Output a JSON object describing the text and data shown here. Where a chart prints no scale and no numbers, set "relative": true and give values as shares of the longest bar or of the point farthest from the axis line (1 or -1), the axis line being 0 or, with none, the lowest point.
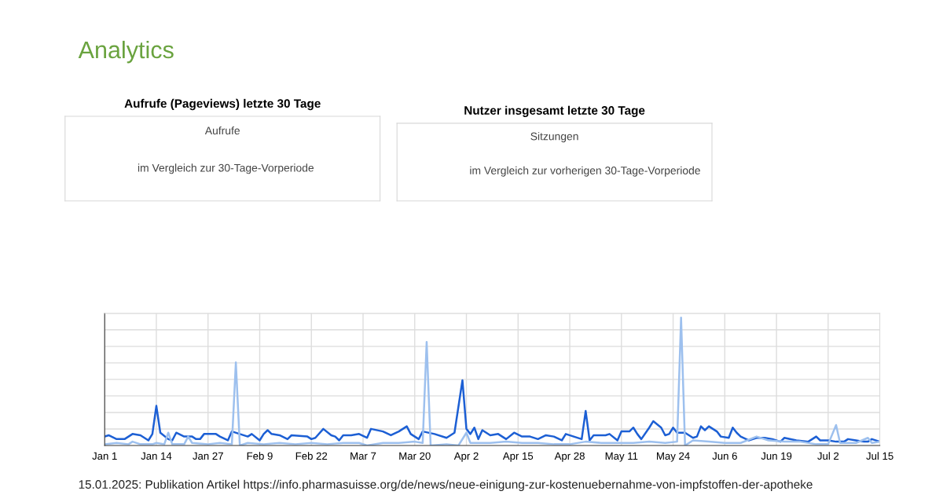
{
  "chart_data": [
    {
      "type": "other",
      "title": "Analytics"
    },
    {
      "type": "other",
      "title": "Aufrufe (Pageviews) letzte 30 Tage",
      "annotations": [
        "Aufrufe",
        "im Vergleich zur 30-Tage-Vorperiode"
      ]
    },
    {
      "type": "other",
      "title": "Nutzer insgesamt letzte 30 Tage",
      "annotations": [
        "Sitzungen",
        "im Vergleich zur vorherigen 30-Tage-Vorperiode"
      ]
    },
    {
      "type": "line",
      "relative": true,
      "grid": true,
      "legend": false,
      "marker": "none",
      "line_style": "solid",
      "xlim": [
        "2025-01-01",
        "2025-07-15"
      ],
      "xticks": [
        {
          "value": "2025-01-01",
          "label": "Jan 1"
        },
        {
          "value": "2025-01-14",
          "label": "Jan 14"
        },
        {
          "value": "2025-01-27",
          "label": "Jan 27"
        },
        {
          "value": "2025-02-09",
          "label": "Feb 9"
        },
        {
          "value": "2025-02-22",
          "label": "Feb 22"
        },
        {
          "value": "2025-03-07",
          "label": "Mar 7"
        },
        {
          "value": "2025-03-20",
          "label": "Mar 20"
        },
        {
          "value": "2025-04-02",
          "label": "Apr 2"
        },
        {
          "value": "2025-04-15",
          "label": "Apr 15"
        },
        {
          "value": "2025-04-28",
          "label": "Apr 28"
        },
        {
          "value": "2025-05-11",
          "label": "May 11"
        },
        {
          "value": "2025-05-24",
          "label": "May 24"
        },
        {
          "value": "2025-06-06",
          "label": "Jun 6"
        },
        {
          "value": "2025-06-19",
          "label": "Jun 19"
        },
        {
          "value": "2025-07-02",
          "label": "Jul 2"
        },
        {
          "value": "2025-07-15",
          "label": "Jul 15"
        }
      ],
      "series": [
        {
          "color": "#1c5fd4",
          "x": [
            "2025-01-01",
            "2025-01-02",
            "2025-01-04",
            "2025-01-06",
            "2025-01-08",
            "2025-01-10",
            "2025-01-12",
            "2025-01-13",
            "2025-01-14",
            "2025-01-15",
            "2025-01-17",
            "2025-01-18",
            "2025-01-19",
            "2025-01-21",
            "2025-01-23",
            "2025-01-24",
            "2025-01-25",
            "2025-01-26",
            "2025-01-29",
            "2025-01-30",
            "2025-02-01",
            "2025-02-02",
            "2025-02-04",
            "2025-02-06",
            "2025-02-07",
            "2025-02-09",
            "2025-02-10",
            "2025-02-11",
            "2025-02-12",
            "2025-02-14",
            "2025-02-16",
            "2025-02-17",
            "2025-02-21",
            "2025-02-22",
            "2025-02-23",
            "2025-02-25",
            "2025-02-27",
            "2025-02-28",
            "2025-03-01",
            "2025-03-02",
            "2025-03-04",
            "2025-03-06",
            "2025-03-08",
            "2025-03-09",
            "2025-03-12",
            "2025-03-14",
            "2025-03-16",
            "2025-03-18",
            "2025-03-19",
            "2025-03-21",
            "2025-03-22",
            "2025-03-25",
            "2025-03-28",
            "2025-03-30",
            "2025-04-01",
            "2025-04-02",
            "2025-04-03",
            "2025-04-04",
            "2025-04-05",
            "2025-04-06",
            "2025-04-08",
            "2025-04-10",
            "2025-04-12",
            "2025-04-14",
            "2025-04-16",
            "2025-04-18",
            "2025-04-20",
            "2025-04-22",
            "2025-04-24",
            "2025-04-26",
            "2025-04-27",
            "2025-04-29",
            "2025-05-01",
            "2025-05-02",
            "2025-05-03",
            "2025-05-04",
            "2025-05-07",
            "2025-05-08",
            "2025-05-10",
            "2025-05-11",
            "2025-05-13",
            "2025-05-14",
            "2025-05-15",
            "2025-05-16",
            "2025-05-18",
            "2025-05-19",
            "2025-05-21",
            "2025-05-22",
            "2025-05-23",
            "2025-05-24",
            "2025-05-25",
            "2025-05-27",
            "2025-05-29",
            "2025-05-30",
            "2025-05-31",
            "2025-06-01",
            "2025-06-02",
            "2025-06-04",
            "2025-06-05",
            "2025-06-07",
            "2025-06-08",
            "2025-06-09",
            "2025-06-10",
            "2025-06-12",
            "2025-06-14",
            "2025-06-16",
            "2025-06-18",
            "2025-06-20",
            "2025-06-21",
            "2025-06-24",
            "2025-06-27",
            "2025-06-29",
            "2025-06-30",
            "2025-07-02",
            "2025-07-04",
            "2025-07-06",
            "2025-07-07",
            "2025-07-09",
            "2025-07-11",
            "2025-07-12",
            "2025-07-13",
            "2025-07-15"
          ],
          "values": [
            0.07,
            0.08,
            0.05,
            0.05,
            0.09,
            0.08,
            0.04,
            0.09,
            0.31,
            0.1,
            0.05,
            0.04,
            0.1,
            0.07,
            0.07,
            0.05,
            0.05,
            0.09,
            0.09,
            0.07,
            0.04,
            0.11,
            0.09,
            0.07,
            0.09,
            0.04,
            0.09,
            0.12,
            0.09,
            0.08,
            0.05,
            0.08,
            0.07,
            0.05,
            0.06,
            0.13,
            0.08,
            0.07,
            0.04,
            0.08,
            0.08,
            0.09,
            0.06,
            0.13,
            0.11,
            0.08,
            0.11,
            0.15,
            0.09,
            0.05,
            0.11,
            0.09,
            0.06,
            0.1,
            0.51,
            0.13,
            0.09,
            0.14,
            0.05,
            0.12,
            0.08,
            0.09,
            0.05,
            0.1,
            0.07,
            0.07,
            0.05,
            0.08,
            0.07,
            0.04,
            0.09,
            0.07,
            0.05,
            0.27,
            0.04,
            0.08,
            0.08,
            0.09,
            0.04,
            0.11,
            0.11,
            0.14,
            0.09,
            0.05,
            0.14,
            0.19,
            0.14,
            0.08,
            0.09,
            0.14,
            0.1,
            0.1,
            0.06,
            0.07,
            0.15,
            0.12,
            0.15,
            0.11,
            0.07,
            0.06,
            0.14,
            0.1,
            0.07,
            0.04,
            0.06,
            0.06,
            0.05,
            0.03,
            0.06,
            0.04,
            0.03,
            0.07,
            0.04,
            0.04,
            0.03,
            0.03,
            0.05,
            0.04,
            0.03,
            0.03,
            0.05,
            0.03
          ]
        },
        {
          "color": "#9dc0ee",
          "x": [
            "2025-01-01",
            "2025-01-04",
            "2025-01-07",
            "2025-01-08",
            "2025-01-10",
            "2025-01-13",
            "2025-01-14",
            "2025-01-16",
            "2025-01-17",
            "2025-01-18",
            "2025-01-21",
            "2025-01-22",
            "2025-01-23",
            "2025-01-27",
            "2025-01-30",
            "2025-02-02",
            "2025-02-03",
            "2025-02-04",
            "2025-02-06",
            "2025-02-10",
            "2025-02-14",
            "2025-02-18",
            "2025-02-22",
            "2025-02-26",
            "2025-03-02",
            "2025-03-06",
            "2025-03-08",
            "2025-03-12",
            "2025-03-16",
            "2025-03-20",
            "2025-03-22",
            "2025-03-23",
            "2025-03-24",
            "2025-03-28",
            "2025-03-31",
            "2025-04-02",
            "2025-04-03",
            "2025-04-08",
            "2025-04-12",
            "2025-04-16",
            "2025-04-20",
            "2025-04-24",
            "2025-04-28",
            "2025-05-02",
            "2025-05-06",
            "2025-05-10",
            "2025-05-14",
            "2025-05-18",
            "2025-05-22",
            "2025-05-25",
            "2025-05-26",
            "2025-05-27",
            "2025-05-29",
            "2025-06-02",
            "2025-06-06",
            "2025-06-10",
            "2025-06-14",
            "2025-06-17",
            "2025-06-21",
            "2025-06-25",
            "2025-06-29",
            "2025-07-02",
            "2025-07-04",
            "2025-07-05",
            "2025-07-09",
            "2025-07-12",
            "2025-07-13",
            "2025-07-15"
          ],
          "values": [
            0.01,
            0.02,
            0.01,
            0.03,
            0.01,
            0.01,
            0.02,
            0.01,
            0.1,
            0.01,
            0.01,
            0.07,
            0.02,
            0.01,
            0.02,
            0.01,
            0.65,
            0.0,
            0.02,
            0.01,
            0.02,
            0.01,
            0.02,
            0.01,
            0.02,
            0.02,
            0.0,
            0.02,
            0.02,
            0.03,
            0.02,
            0.81,
            0.0,
            0.01,
            0.0,
            0.1,
            0.02,
            0.02,
            0.03,
            0.02,
            0.02,
            0.01,
            0.01,
            0.03,
            0.02,
            0.02,
            0.02,
            0.03,
            0.02,
            0.03,
            1.0,
            0.0,
            0.04,
            0.03,
            0.02,
            0.02,
            0.07,
            0.04,
            0.03,
            0.03,
            0.01,
            0.01,
            0.16,
            0.02,
            0.02,
            0.06,
            0.02,
            0.03
          ]
        }
      ],
      "annotations": [
        "15.01.2025: Publikation Artikel https://info.pharmasuisse.org/de/news/neue-einigung-zur-kostenuebernahme-von-impfstoffen-der-apotheke"
      ]
    }
  ]
}
